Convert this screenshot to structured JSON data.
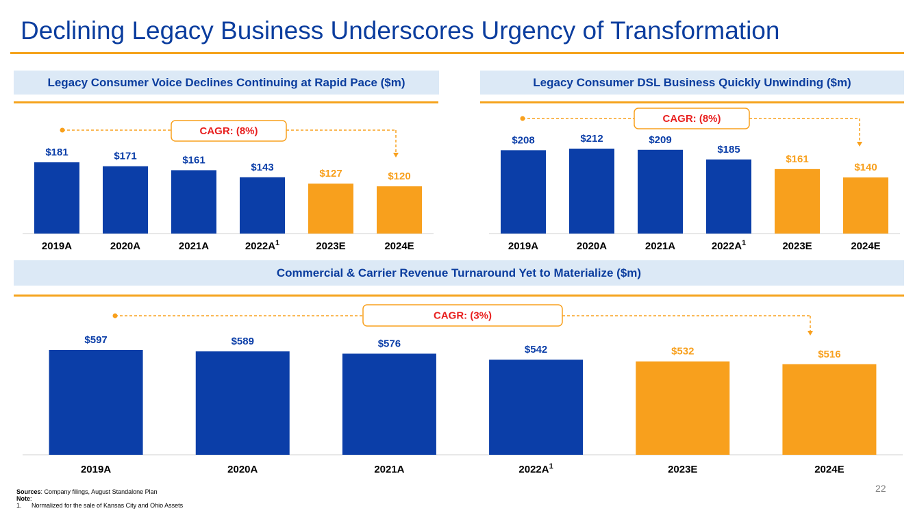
{
  "title": "Declining Legacy Business Underscores Urgency of Transformation",
  "colors": {
    "actual": "#0b3ea8",
    "estimate": "#f8a01d",
    "cagr": "#e8201f",
    "header_bg": "#dce9f6",
    "rule": "#f5a31c"
  },
  "chart_data": [
    {
      "type": "bar",
      "title": "Legacy Consumer Voice Declines Continuing at Rapid Pace ($m)",
      "categories": [
        "2019A",
        "2020A",
        "2021A",
        "2022A",
        "2023E",
        "2024E"
      ],
      "values": [
        181,
        171,
        161,
        143,
        127,
        120
      ],
      "value_labels": [
        "$181",
        "$171",
        "$161",
        "$143",
        "$127",
        "$120"
      ],
      "kinds": [
        "actual",
        "actual",
        "actual",
        "actual",
        "estimate",
        "estimate"
      ],
      "footnote_category": "2022A",
      "footnote_mark": "1",
      "cagr_label": "CAGR:  (8%)",
      "xlabel": "",
      "ylabel": "",
      "ylim": [
        0,
        181
      ]
    },
    {
      "type": "bar",
      "title": "Legacy Consumer DSL Business Quickly Unwinding ($m)",
      "categories": [
        "2019A",
        "2020A",
        "2021A",
        "2022A",
        "2023E",
        "2024E"
      ],
      "values": [
        208,
        212,
        209,
        185,
        161,
        140
      ],
      "value_labels": [
        "$208",
        "$212",
        "$209",
        "$185",
        "$161",
        "$140"
      ],
      "kinds": [
        "actual",
        "actual",
        "actual",
        "actual",
        "estimate",
        "estimate"
      ],
      "footnote_category": "2022A",
      "footnote_mark": "1",
      "cagr_label": "CAGR:  (8%)",
      "xlabel": "",
      "ylabel": "",
      "ylim": [
        0,
        212
      ]
    },
    {
      "type": "bar",
      "title": "Commercial & Carrier Revenue Turnaround Yet to Materialize ($m)",
      "categories": [
        "2019A",
        "2020A",
        "2021A",
        "2022A",
        "2023E",
        "2024E"
      ],
      "values": [
        597,
        589,
        576,
        542,
        532,
        516
      ],
      "value_labels": [
        "$597",
        "$589",
        "$576",
        "$542",
        "$532",
        "$516"
      ],
      "kinds": [
        "actual",
        "actual",
        "actual",
        "actual",
        "estimate",
        "estimate"
      ],
      "footnote_category": "2022A",
      "footnote_mark": "1",
      "cagr_label": "CAGR:  (3%)",
      "xlabel": "",
      "ylabel": "",
      "ylim": [
        0,
        597
      ]
    }
  ],
  "footer": {
    "sources_label": "Sources",
    "sources_text": ": Company filings, August Standalone Plan",
    "note_label": "Note",
    "note_colon": ":",
    "note_number": "1.",
    "note_text": "Normalized for the sale of Kansas City and Ohio Assets",
    "page_number": "22"
  }
}
